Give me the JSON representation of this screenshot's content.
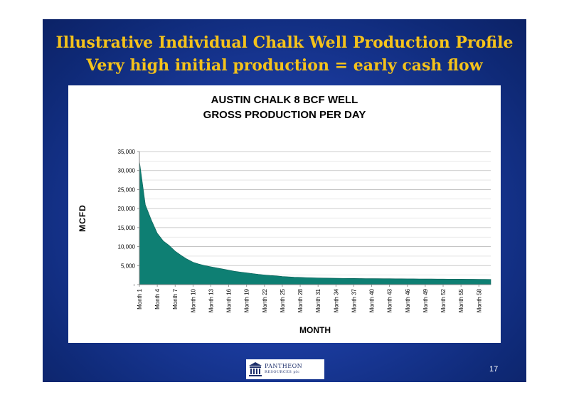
{
  "slide": {
    "title_line1": "Illustrative Individual Chalk Well Production Profile",
    "title_line2": "Very high initial production = early cash flow",
    "page_number": "17",
    "logo_text": "PANTHEON",
    "logo_subtext": "RESOURCES plc"
  },
  "colors": {
    "background": "#1a3a9c",
    "title": "#f4c21b",
    "area_fill": "#0e7f73"
  },
  "chart_data": {
    "type": "area",
    "title_line1": "AUSTIN CHALK 8 BCF WELL",
    "title_line2": "GROSS PRODUCTION PER DAY",
    "xlabel": "MONTH",
    "ylabel": "MCFD",
    "ylim": [
      0,
      35000
    ],
    "yticks": [
      0,
      5000,
      10000,
      15000,
      20000,
      25000,
      30000,
      35000
    ],
    "ytick_labels": [
      "-",
      "5,000",
      "10,000",
      "15,000",
      "20,000",
      "25,000",
      "30,000",
      "35,000"
    ],
    "x_tick_labels": [
      "Month 1",
      "Month 4",
      "Month 7",
      "Month 10",
      "Month 13",
      "Month 16",
      "Month 19",
      "Month 22",
      "Month 25",
      "Month 28",
      "Month 31",
      "Month 34",
      "Month 37",
      "Month 40",
      "Month 43",
      "Month 46",
      "Month 49",
      "Month 52",
      "Month 55",
      "Month 58"
    ],
    "grid": true,
    "series": [
      {
        "values": [
          32500,
          21000,
          17000,
          13500,
          11500,
          10300,
          8800,
          7700,
          6700,
          5900,
          5400,
          5000,
          4700,
          4400,
          4100,
          3800,
          3500,
          3300,
          3100,
          2900,
          2700,
          2550,
          2400,
          2300,
          2150,
          2050,
          1950,
          1900,
          1850,
          1800,
          1750,
          1720,
          1700,
          1680,
          1660,
          1640,
          1620,
          1600,
          1590,
          1580,
          1570,
          1560,
          1550,
          1540,
          1530,
          1520,
          1510,
          1500,
          1490,
          1480,
          1470,
          1460,
          1450,
          1440,
          1430,
          1420,
          1410,
          1400,
          1390,
          1380
        ]
      }
    ]
  }
}
